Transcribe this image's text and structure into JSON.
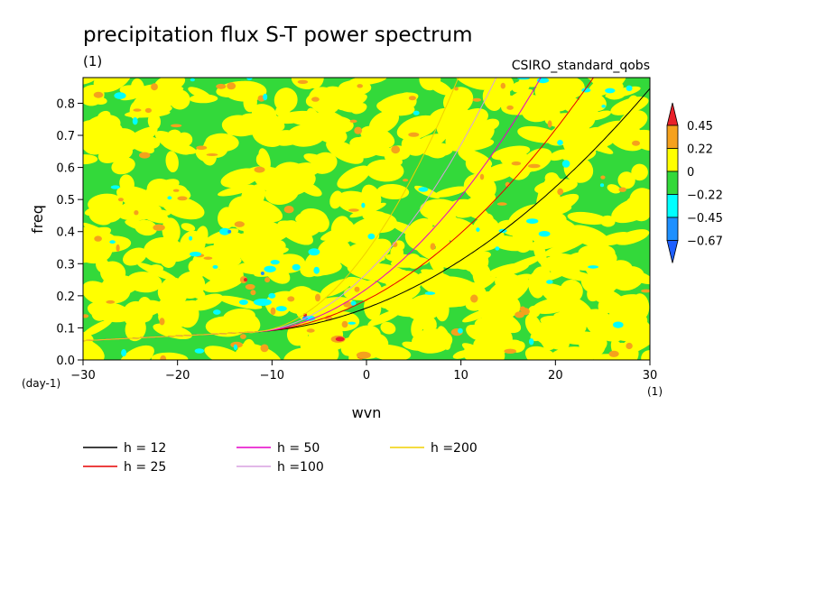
{
  "chart_data": {
    "type": "heatmap",
    "title": "precipitation flux S-T power spectrum",
    "subtitle": "(1)",
    "dataset": "CSIRO_standard_qobs",
    "xlabel": "wvn",
    "ylabel": "freq",
    "x_unit": "(1)",
    "y_unit": "(day-1)",
    "xlim": [
      -30,
      30
    ],
    "ylim": [
      0,
      0.88
    ],
    "x_ticks": [
      -30,
      -20,
      -10,
      0,
      10,
      20,
      30
    ],
    "y_ticks": [
      0.0,
      0.1,
      0.2,
      0.3,
      0.4,
      0.5,
      0.6,
      0.7,
      0.8
    ],
    "colorbar": {
      "levels": [
        "0.45",
        "0.22",
        "0",
        "-0.22",
        "-0.45",
        "-0.67"
      ],
      "colors": [
        "#e8202a",
        "#f5a11d",
        "#ffff00",
        "#33d93a",
        "#00ffff",
        "#1e90ff",
        "#1e5fff"
      ]
    },
    "series": [
      {
        "name": "h = 12",
        "color": "#000000",
        "h": 12
      },
      {
        "name": "h = 25",
        "color": "#e60000",
        "h": 25
      },
      {
        "name": "h = 50",
        "color": "#e600c8",
        "h": 50
      },
      {
        "name": "h =100",
        "color": "#d8a0e0",
        "h": 100
      },
      {
        "name": "h =200",
        "color": "#f0d000",
        "h": 200
      }
    ]
  }
}
